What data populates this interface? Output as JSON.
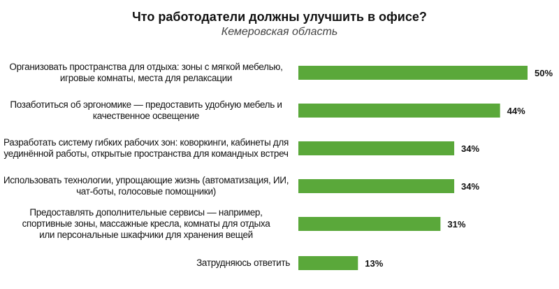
{
  "chart_data": {
    "type": "bar",
    "orientation": "horizontal",
    "title": "Что работодатели должны улучшить в офисе?",
    "subtitle": "Кемеровская область",
    "categories": [
      "Организовать пространства для отдыха: зоны с мягкой мебелью, игровые комнаты, места для релаксации",
      "Позаботиться об эргономике — предоставить удобную мебель и качественное освещение",
      "Разработать систему гибких рабочих зон: коворкинги, кабинеты для уединённой работы, открытые пространства для командных встреч",
      "Использовать технологии, упрощающие жизнь (автоматизация, ИИ, чат-боты, голосовые помощники)",
      "Предоставлять дополнительные сервисы — например, спортивные зоны, массажные кресла, комнаты для отдыха или персональные шкафчики для хранения вещей",
      "Затрудняюсь ответить"
    ],
    "values": [
      50,
      44,
      34,
      34,
      31,
      13
    ],
    "value_labels": [
      "50%",
      "44%",
      "34%",
      "34%",
      "31%",
      "13%"
    ],
    "unit": "%",
    "xlim": [
      0,
      50
    ],
    "grid": false,
    "legend": "none",
    "bar_color": "#5aa83a"
  }
}
